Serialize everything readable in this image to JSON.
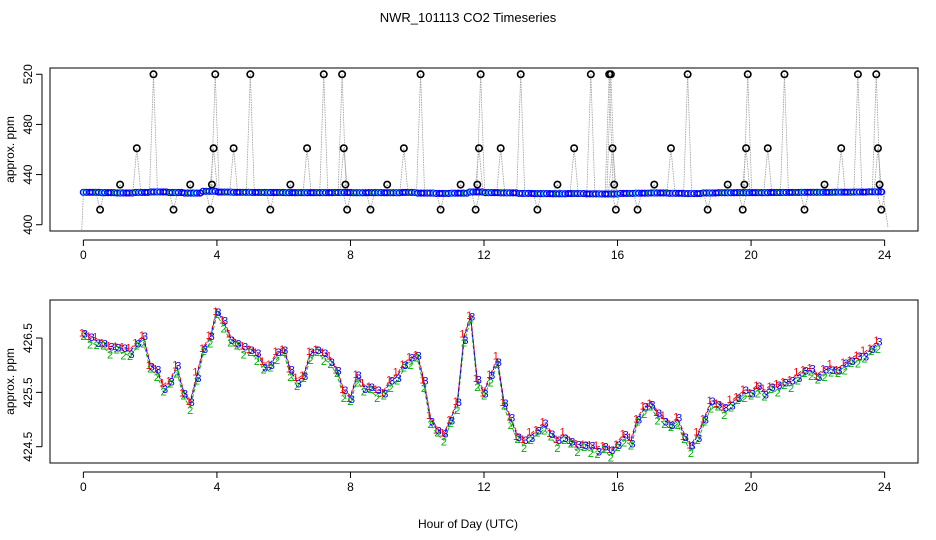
{
  "title": "NWR_101113  CO2 Timeseries",
  "xlabel": "Hour of Day (UTC)",
  "colors": {
    "black": "#000000",
    "cyan": "#00d8e8",
    "blue": "#0000ff",
    "red": "#ff0000",
    "green": "#00b000",
    "grey": "#999999"
  },
  "chart_data": [
    {
      "type": "scatter",
      "name": "raw-co2-timeseries",
      "ylabel": "approx. ppm",
      "xlim": [
        -1,
        25
      ],
      "ylim": [
        395,
        525
      ],
      "xticks": [
        0,
        4,
        8,
        12,
        16,
        20,
        24
      ],
      "yticks": [
        400,
        440,
        480,
        520
      ],
      "xtick_labels": [
        "0",
        "4",
        "8",
        "12",
        "16",
        "20",
        "24"
      ],
      "ytick_labels": [
        "400",
        "440",
        "480",
        "520"
      ],
      "baseline_ppm": 425.5,
      "baseline_x": [
        0,
        0.5,
        1,
        1.5,
        2,
        2.5,
        3,
        3.5,
        4,
        4.5,
        5,
        5.5,
        6,
        6.5,
        7,
        7.5,
        8,
        8.5,
        9,
        9.5,
        10,
        10.5,
        11,
        11.5,
        12,
        12.5,
        13,
        13.5,
        14,
        14.5,
        15,
        15.5,
        16,
        16.5,
        17,
        17.5,
        18,
        18.5,
        19,
        19.5,
        20,
        20.5,
        21,
        21.5,
        22,
        22.5,
        23,
        23.5
      ],
      "baseline_y": [
        425.9,
        425.6,
        425.3,
        425.8,
        426.2,
        425.7,
        425.2,
        426.8,
        426.1,
        425.9,
        425.8,
        425.7,
        425.6,
        425.6,
        425.6,
        425.7,
        425.5,
        425.6,
        425.5,
        425.8,
        425.2,
        424.9,
        425.1,
        426.2,
        425.6,
        425.4,
        424.9,
        424.7,
        424.6,
        424.8,
        424.5,
        424.4,
        424.9,
        425.1,
        425.3,
        425.0,
        424.8,
        425.3,
        425.5,
        425.6,
        425.6,
        425.7,
        425.8,
        425.9,
        425.9,
        426.0,
        426.1,
        426.3
      ],
      "spikes": [
        {
          "x": 0.5,
          "y": 412
        },
        {
          "x": 1.1,
          "y": 432
        },
        {
          "x": 1.6,
          "y": 461
        },
        {
          "x": 2.1,
          "y": 520
        },
        {
          "x": 2.7,
          "y": 412
        },
        {
          "x": 3.2,
          "y": 432
        },
        {
          "x": 3.8,
          "y": 412
        },
        {
          "x": 3.85,
          "y": 432
        },
        {
          "x": 3.9,
          "y": 461
        },
        {
          "x": 3.95,
          "y": 520
        },
        {
          "x": 4.5,
          "y": 461
        },
        {
          "x": 5.0,
          "y": 520
        },
        {
          "x": 5.6,
          "y": 412
        },
        {
          "x": 6.2,
          "y": 432
        },
        {
          "x": 6.7,
          "y": 461
        },
        {
          "x": 7.2,
          "y": 520
        },
        {
          "x": 7.75,
          "y": 520
        },
        {
          "x": 7.8,
          "y": 461
        },
        {
          "x": 7.85,
          "y": 432
        },
        {
          "x": 7.9,
          "y": 412
        },
        {
          "x": 8.6,
          "y": 412
        },
        {
          "x": 9.1,
          "y": 432
        },
        {
          "x": 9.6,
          "y": 461
        },
        {
          "x": 10.1,
          "y": 520
        },
        {
          "x": 10.7,
          "y": 412
        },
        {
          "x": 11.3,
          "y": 432
        },
        {
          "x": 11.75,
          "y": 412
        },
        {
          "x": 11.8,
          "y": 432
        },
        {
          "x": 11.85,
          "y": 461
        },
        {
          "x": 11.9,
          "y": 520
        },
        {
          "x": 12.5,
          "y": 461
        },
        {
          "x": 13.1,
          "y": 520
        },
        {
          "x": 13.6,
          "y": 412
        },
        {
          "x": 14.2,
          "y": 432
        },
        {
          "x": 14.7,
          "y": 461
        },
        {
          "x": 15.2,
          "y": 520
        },
        {
          "x": 15.75,
          "y": 520
        },
        {
          "x": 15.8,
          "y": 520
        },
        {
          "x": 15.85,
          "y": 461
        },
        {
          "x": 15.9,
          "y": 432
        },
        {
          "x": 15.95,
          "y": 412
        },
        {
          "x": 16.6,
          "y": 412
        },
        {
          "x": 17.1,
          "y": 432
        },
        {
          "x": 17.6,
          "y": 461
        },
        {
          "x": 18.1,
          "y": 520
        },
        {
          "x": 18.7,
          "y": 412
        },
        {
          "x": 19.3,
          "y": 432
        },
        {
          "x": 19.75,
          "y": 412
        },
        {
          "x": 19.8,
          "y": 432
        },
        {
          "x": 19.85,
          "y": 461
        },
        {
          "x": 19.9,
          "y": 520
        },
        {
          "x": 20.5,
          "y": 461
        },
        {
          "x": 21.0,
          "y": 520
        },
        {
          "x": 21.6,
          "y": 412
        },
        {
          "x": 22.2,
          "y": 432
        },
        {
          "x": 22.7,
          "y": 461
        },
        {
          "x": 23.2,
          "y": 520
        },
        {
          "x": 23.75,
          "y": 520
        },
        {
          "x": 23.8,
          "y": 461
        },
        {
          "x": 23.85,
          "y": 432
        },
        {
          "x": 23.9,
          "y": 412
        }
      ]
    },
    {
      "type": "scatter",
      "name": "averaged-co2-timeseries",
      "ylabel": "approx. ppm",
      "xlim": [
        -1,
        25
      ],
      "ylim": [
        424.2,
        427.2
      ],
      "xticks": [
        0,
        4,
        8,
        12,
        16,
        20,
        24
      ],
      "yticks": [
        424.5,
        425.5,
        426.5
      ],
      "xtick_labels": [
        "0",
        "4",
        "8",
        "12",
        "16",
        "20",
        "24"
      ],
      "ytick_labels": [
        "424.5",
        "425.5",
        "426.5"
      ],
      "series": [
        {
          "name": "1",
          "color": "red",
          "offset": 0.04
        },
        {
          "name": "2",
          "color": "green",
          "offset": -0.08
        },
        {
          "name": "3",
          "color": "blue",
          "offset": 0.0
        }
      ],
      "x": [
        0,
        0.2,
        0.4,
        0.6,
        0.8,
        1.0,
        1.2,
        1.4,
        1.6,
        1.8,
        2.0,
        2.2,
        2.4,
        2.6,
        2.8,
        3.0,
        3.2,
        3.4,
        3.6,
        3.8,
        4.0,
        4.2,
        4.4,
        4.6,
        4.8,
        5.0,
        5.2,
        5.4,
        5.6,
        5.8,
        6.0,
        6.2,
        6.4,
        6.6,
        6.8,
        7.0,
        7.2,
        7.4,
        7.6,
        7.8,
        8.0,
        8.2,
        8.4,
        8.6,
        8.8,
        9.0,
        9.2,
        9.4,
        9.6,
        9.8,
        10.0,
        10.2,
        10.4,
        10.6,
        10.8,
        11.0,
        11.2,
        11.4,
        11.6,
        11.8,
        12.0,
        12.2,
        12.4,
        12.6,
        12.8,
        13.0,
        13.2,
        13.4,
        13.6,
        13.8,
        14.0,
        14.2,
        14.4,
        14.6,
        14.8,
        15.0,
        15.2,
        15.4,
        15.6,
        15.8,
        16.0,
        16.2,
        16.4,
        16.6,
        16.8,
        17.0,
        17.2,
        17.4,
        17.6,
        17.8,
        18.0,
        18.2,
        18.4,
        18.6,
        18.8,
        19.0,
        19.2,
        19.4,
        19.6,
        19.8,
        20.0,
        20.2,
        20.4,
        20.6,
        20.8,
        21.0,
        21.2,
        21.4,
        21.6,
        21.8,
        22.0,
        22.2,
        22.4,
        22.6,
        22.8,
        23.0,
        23.2,
        23.4,
        23.6,
        23.8
      ],
      "y": [
        426.6,
        426.5,
        426.45,
        426.4,
        426.3,
        426.35,
        426.3,
        426.25,
        426.4,
        426.5,
        426.0,
        425.9,
        425.6,
        425.7,
        425.95,
        425.5,
        425.3,
        425.8,
        426.3,
        426.5,
        427.0,
        426.8,
        426.5,
        426.4,
        426.3,
        426.3,
        426.2,
        426.0,
        426.0,
        426.2,
        426.3,
        425.9,
        425.7,
        425.8,
        426.2,
        426.3,
        426.2,
        426.1,
        425.9,
        425.5,
        425.4,
        425.8,
        425.6,
        425.6,
        425.5,
        425.5,
        425.7,
        425.8,
        426.0,
        426.1,
        426.2,
        425.7,
        425.0,
        424.8,
        424.7,
        425.0,
        425.3,
        426.5,
        426.9,
        425.7,
        425.5,
        425.8,
        426.1,
        425.3,
        425.0,
        424.7,
        424.6,
        424.7,
        424.8,
        424.9,
        424.75,
        424.6,
        424.7,
        424.6,
        424.5,
        424.55,
        424.5,
        424.45,
        424.5,
        424.4,
        424.55,
        424.7,
        424.6,
        425.0,
        425.2,
        425.3,
        425.1,
        425.0,
        424.9,
        425.0,
        424.7,
        424.5,
        424.7,
        425.0,
        425.3,
        425.3,
        425.2,
        425.3,
        425.4,
        425.5,
        425.5,
        425.6,
        425.5,
        425.6,
        425.6,
        425.7,
        425.7,
        425.8,
        425.9,
        425.9,
        425.8,
        425.9,
        425.95,
        425.9,
        426.0,
        426.1,
        426.15,
        426.2,
        426.3,
        426.4
      ]
    }
  ]
}
